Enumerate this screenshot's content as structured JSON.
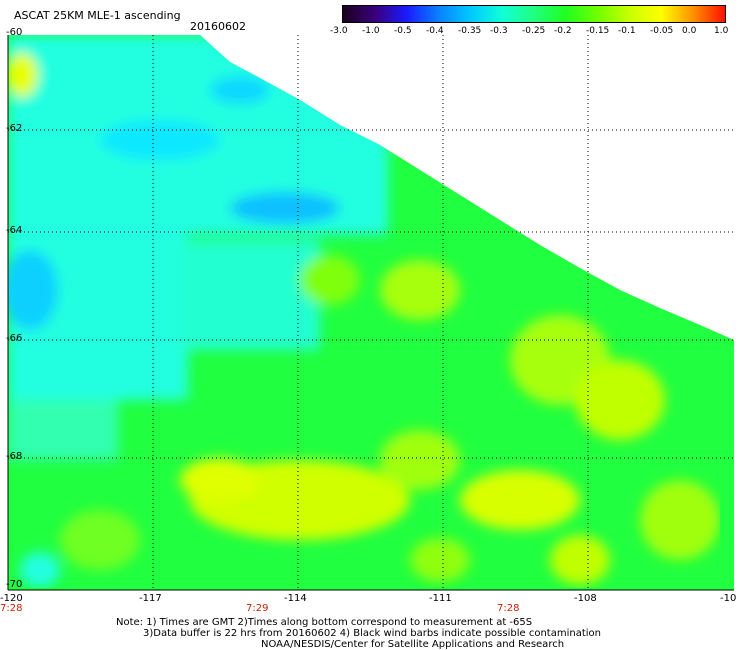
{
  "header": {
    "product": "ASCAT 25KM MLE-1 ascending",
    "date": "20160602"
  },
  "colorbar": {
    "labels": [
      "-3.0",
      "-1.0",
      "-0.5",
      "-0.4",
      "-0.35",
      "-0.3",
      "-0.25",
      "-0.2",
      "-0.15",
      "-0.1",
      "-0.05",
      "0.0",
      "1.0"
    ],
    "colors": [
      "#1a0020",
      "#3a007a",
      "#1a1aff",
      "#0a80ff",
      "#00c8ff",
      "#10ffd8",
      "#20ff80",
      "#20ff20",
      "#70ff00",
      "#c8ff00",
      "#ffff00",
      "#ff9000",
      "#ff1000"
    ]
  },
  "map": {
    "lat_labels": [
      "-60",
      "-62",
      "-64",
      "-66",
      "-68",
      "-70"
    ],
    "lon_labels": [
      "-120",
      "-117",
      "-114",
      "-111",
      "-108",
      "-10"
    ],
    "time_labels": [
      "7:28",
      "7:29",
      "7:28"
    ],
    "field_colors": {
      "cyan": "#20ffe0",
      "cyan_mid": "#10f8f0",
      "blue": "#10c8ff",
      "green": "#20ff40",
      "yellowgreen": "#a8ff10",
      "yellow": "#e8ff00",
      "orange_spot": "#ffe000"
    }
  },
  "notes": {
    "line1": "Note: 1) Times are GMT 2)Times along bottom correspond to measurement at -65S",
    "line2": "3)Data buffer is 22 hrs from 20160602 4) Black wind barbs indicate possible contamination",
    "line3": "NOAA/NESDIS/Center for Satellite Applications and Research"
  }
}
